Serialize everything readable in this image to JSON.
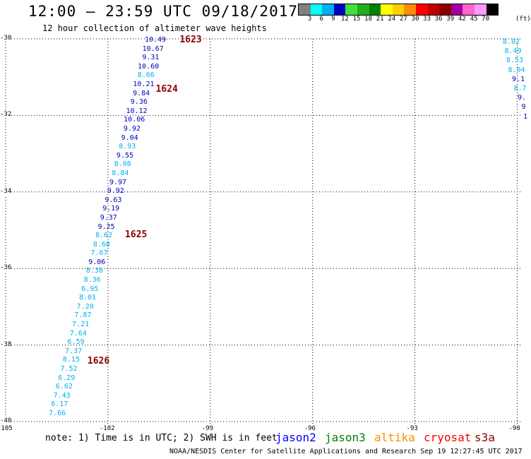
{
  "header": {
    "title": "12:00 – 23:59 UTC 09/18/2017",
    "subtitle": "12 hour collection of altimeter wave heights"
  },
  "legend": {
    "labels": [
      "3",
      "6",
      "9",
      "12",
      "15",
      "18",
      "21",
      "24",
      "27",
      "30",
      "33",
      "36",
      "39",
      "42",
      "45",
      "70"
    ],
    "unit": "(ft)",
    "colors": [
      "#808080",
      "#00ffff",
      "#00b0f0",
      "#0000c0",
      "#40e040",
      "#20b020",
      "#008000",
      "#ffff00",
      "#ffd000",
      "#ff8c00",
      "#ff0000",
      "#c00000",
      "#8b0000",
      "#a000a0",
      "#ff66cc",
      "#ff99ff",
      "#000000"
    ]
  },
  "map": {
    "lat_labels": [
      "-30",
      "-32",
      "-34",
      "-36",
      "-38",
      "-40"
    ],
    "lon_labels": [
      "-105",
      "-102",
      "-99",
      "-96",
      "-93",
      "-90"
    ],
    "tracks": [
      {
        "id": "1623",
        "lat": -30.0,
        "lon": -99.9
      },
      {
        "id": "1624",
        "lat": -31.3,
        "lon": -100.6
      },
      {
        "id": "1625",
        "lat": -35.1,
        "lon": -101.5
      },
      {
        "id": "1626",
        "lat": -38.4,
        "lon": -102.6
      }
    ],
    "main_track": [
      {
        "v": "10.49",
        "c": "#0000c0"
      },
      {
        "v": "10.67",
        "c": "#0000c0"
      },
      {
        "v": "9.31",
        "c": "#0000c0"
      },
      {
        "v": "10.60",
        "c": "#0000c0"
      },
      {
        "v": "8.66",
        "c": "#00b0f0"
      },
      {
        "v": "10.21",
        "c": "#0000c0"
      },
      {
        "v": "9.84",
        "c": "#0000c0"
      },
      {
        "v": "9.36",
        "c": "#0000c0"
      },
      {
        "v": "10.12",
        "c": "#0000c0"
      },
      {
        "v": "10.06",
        "c": "#0000c0"
      },
      {
        "v": "9.92",
        "c": "#0000c0"
      },
      {
        "v": "9.04",
        "c": "#0000c0"
      },
      {
        "v": "8.93",
        "c": "#00b0f0"
      },
      {
        "v": "9.55",
        "c": "#0000c0"
      },
      {
        "v": "8.08",
        "c": "#00b0f0"
      },
      {
        "v": "8.84",
        "c": "#00b0f0"
      },
      {
        "v": "9.97",
        "c": "#0000c0"
      },
      {
        "v": "9.92",
        "c": "#0000c0"
      },
      {
        "v": "9.63",
        "c": "#0000c0"
      },
      {
        "v": "9.19",
        "c": "#0000c0"
      },
      {
        "v": "9.37",
        "c": "#0000c0"
      },
      {
        "v": "9.25",
        "c": "#0000c0"
      },
      {
        "v": "8.62",
        "c": "#00b0f0"
      },
      {
        "v": "8.68",
        "c": "#00b0f0"
      },
      {
        "v": "7.67",
        "c": "#00b0f0"
      },
      {
        "v": "9.06",
        "c": "#0000c0"
      },
      {
        "v": "8.38",
        "c": "#00b0f0"
      },
      {
        "v": "8.36",
        "c": "#00b0f0"
      },
      {
        "v": "6.95",
        "c": "#00b0f0"
      },
      {
        "v": "8.01",
        "c": "#00b0f0"
      },
      {
        "v": "7.20",
        "c": "#00b0f0"
      },
      {
        "v": "7.87",
        "c": "#00b0f0"
      },
      {
        "v": "7.21",
        "c": "#00b0f0"
      },
      {
        "v": "7.64",
        "c": "#00b0f0"
      },
      {
        "v": "6.59",
        "c": "#00b0f0"
      },
      {
        "v": "7.37",
        "c": "#00b0f0"
      },
      {
        "v": "8.15",
        "c": "#00b0f0"
      },
      {
        "v": "7.52",
        "c": "#00b0f0"
      },
      {
        "v": "6.29",
        "c": "#00b0f0"
      },
      {
        "v": "6.62",
        "c": "#00b0f0"
      },
      {
        "v": "7.43",
        "c": "#00b0f0"
      },
      {
        "v": "6.17",
        "c": "#00b0f0"
      },
      {
        "v": "7.66",
        "c": "#00b0f0"
      }
    ],
    "right_track": [
      {
        "v": "8.02",
        "c": "#00b0f0"
      },
      {
        "v": "8.49",
        "c": "#00b0f0"
      },
      {
        "v": "8.53",
        "c": "#00b0f0"
      },
      {
        "v": "8.04",
        "c": "#00b0f0"
      },
      {
        "v": "9.1",
        "c": "#0000c0"
      },
      {
        "v": "8.7",
        "c": "#00b0f0"
      },
      {
        "v": "9.",
        "c": "#0000c0"
      },
      {
        "v": "9",
        "c": "#0000c0"
      },
      {
        "v": "1",
        "c": "#0000c0"
      }
    ]
  },
  "footer": {
    "note": "note:  1) Time is in UTC; 2) SWH is in feet",
    "satellites": [
      {
        "name": "jason2",
        "color": "#0000ff"
      },
      {
        "name": "jason3",
        "color": "#008000"
      },
      {
        "name": "altika",
        "color": "#ff8c00"
      },
      {
        "name": "cryosat",
        "color": "#ff0000"
      },
      {
        "name": "s3a",
        "color": "#8b0000"
      }
    ],
    "credit": "NOAA/NESDIS Center for Satellite Applications and Research    Sep 19 12:27:45 UTC 2017"
  }
}
